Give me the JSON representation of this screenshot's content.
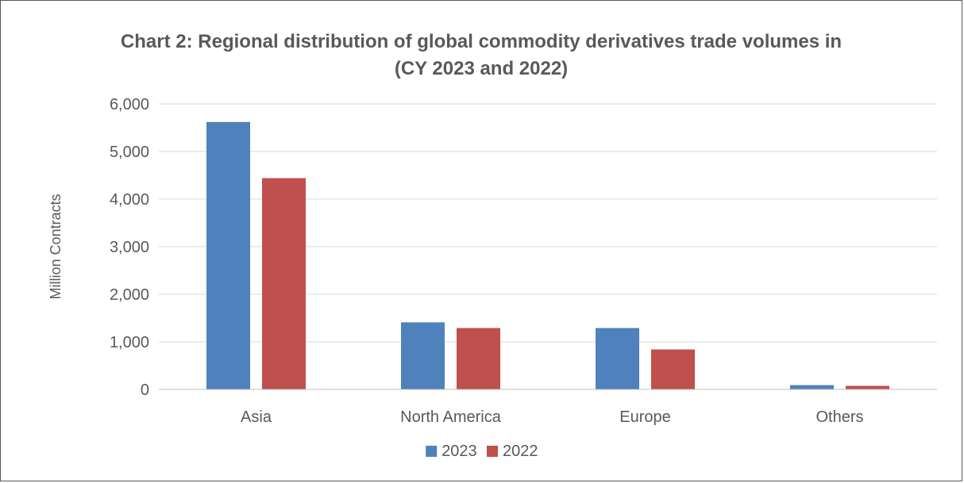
{
  "chart_data": {
    "type": "bar",
    "title_line1": "Chart 2: Regional distribution of global commodity derivatives trade volumes in",
    "title_line2": "(CY 2023 and 2022)",
    "ylabel": "Million Contracts",
    "xlabel": "",
    "categories": [
      "Asia",
      "North America",
      "Europe",
      "Others"
    ],
    "series": [
      {
        "name": "2023",
        "color": "#4f81bd",
        "values": [
          5620,
          1410,
          1290,
          90
        ]
      },
      {
        "name": "2022",
        "color": "#c0504d",
        "values": [
          4440,
          1290,
          840,
          75
        ]
      }
    ],
    "ylim": [
      0,
      6000
    ],
    "yticks": [
      0,
      1000,
      2000,
      3000,
      4000,
      5000,
      6000
    ],
    "ytick_labels": [
      "0",
      "1,000",
      "2,000",
      "3,000",
      "4,000",
      "5,000",
      "6,000"
    ],
    "grid": true,
    "legend_position": "bottom"
  }
}
